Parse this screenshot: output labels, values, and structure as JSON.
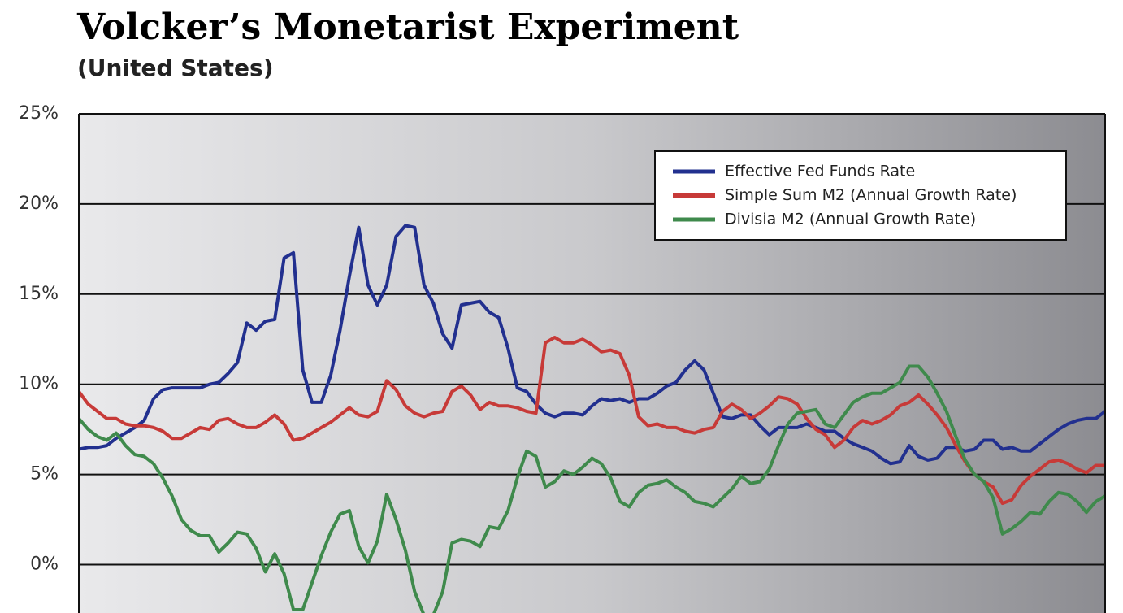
{
  "chart_data": {
    "type": "line",
    "title": "Volcker’s Monetarist Experiment",
    "subtitle": "(United States)",
    "ylim": [
      -1.6,
      25
    ],
    "yticks": [
      {
        "value": 0,
        "label": "0%"
      },
      {
        "value": 5,
        "label": "5%"
      },
      {
        "value": 10,
        "label": "10%"
      },
      {
        "value": 15,
        "label": "15%"
      },
      {
        "value": 20,
        "label": "20%"
      },
      {
        "value": 25,
        "label": "25%"
      }
    ],
    "grid": true,
    "legend": "upper right",
    "series": [
      {
        "name": "Effective Fed Funds Rate",
        "color": "#22308f",
        "values": [
          6.4,
          6.5,
          6.5,
          6.6,
          7.0,
          7.3,
          7.6,
          8.0,
          9.2,
          9.7,
          9.8,
          9.8,
          9.8,
          9.8,
          10.0,
          10.1,
          10.6,
          11.2,
          13.4,
          13.0,
          13.5,
          13.6,
          17.0,
          17.3,
          10.8,
          9.0,
          9.0,
          10.5,
          13.0,
          16.0,
          18.7,
          15.5,
          14.4,
          15.5,
          18.2,
          18.8,
          18.7,
          15.5,
          14.5,
          12.8,
          12.0,
          14.4,
          14.5,
          14.6,
          14.0,
          13.7,
          12.0,
          9.8,
          9.6,
          8.9,
          8.4,
          8.2,
          8.4,
          8.4,
          8.3,
          8.8,
          9.2,
          9.1,
          9.2,
          9.0,
          9.2,
          9.2,
          9.5,
          9.9,
          10.1,
          10.8,
          11.3,
          10.8,
          9.5,
          8.2,
          8.1,
          8.3,
          8.3,
          7.7,
          7.2,
          7.6,
          7.6,
          7.6,
          7.8,
          7.6,
          7.4,
          7.4,
          7.0,
          6.7,
          6.5,
          6.3,
          5.9,
          5.6,
          5.7,
          6.6,
          6.0,
          5.8,
          5.9,
          6.5,
          6.5,
          6.3,
          6.4,
          6.9,
          6.9,
          6.4,
          6.5,
          6.3,
          6.3,
          6.7,
          7.1,
          7.5,
          7.8,
          8.0,
          8.1,
          8.1,
          8.5
        ]
      },
      {
        "name": "Simple Sum M2 (Annual Growth Rate)",
        "color": "#c73a38",
        "values": [
          9.6,
          8.9,
          8.5,
          8.1,
          8.1,
          7.8,
          7.7,
          7.7,
          7.6,
          7.4,
          7.0,
          7.0,
          7.3,
          7.6,
          7.5,
          8.0,
          8.1,
          7.8,
          7.6,
          7.6,
          7.9,
          8.3,
          7.8,
          6.9,
          7.0,
          7.3,
          7.6,
          7.9,
          8.3,
          8.7,
          8.3,
          8.2,
          8.5,
          10.2,
          9.7,
          8.8,
          8.4,
          8.2,
          8.4,
          8.5,
          9.6,
          9.9,
          9.4,
          8.6,
          9.0,
          8.8,
          8.8,
          8.7,
          8.5,
          8.4,
          12.3,
          12.6,
          12.3,
          12.3,
          12.5,
          12.2,
          11.8,
          11.9,
          11.7,
          10.5,
          8.2,
          7.7,
          7.8,
          7.6,
          7.6,
          7.4,
          7.3,
          7.5,
          7.6,
          8.5,
          8.9,
          8.6,
          8.1,
          8.4,
          8.8,
          9.3,
          9.2,
          8.9,
          8.1,
          7.5,
          7.2,
          6.5,
          6.9,
          7.6,
          8.0,
          7.8,
          8.0,
          8.3,
          8.8,
          9.0,
          9.4,
          8.9,
          8.3,
          7.6,
          6.6,
          5.7,
          5.0,
          4.6,
          4.3,
          3.4,
          3.6,
          4.4,
          4.9,
          5.3,
          5.7,
          5.8,
          5.6,
          5.3,
          5.1,
          5.5,
          5.5
        ]
      },
      {
        "name": "Divisia M2 (Annual Growth Rate)",
        "color": "#3f8a4c",
        "values": [
          8.1,
          7.5,
          7.1,
          6.9,
          7.3,
          6.6,
          6.1,
          6.0,
          5.6,
          4.8,
          3.8,
          2.5,
          1.9,
          1.6,
          1.6,
          0.7,
          1.2,
          1.8,
          1.7,
          0.9,
          -0.4,
          0.6,
          -0.5,
          -2.5,
          -2.5,
          -1.0,
          0.5,
          1.8,
          2.8,
          3.0,
          1.0,
          0.1,
          1.3,
          3.9,
          2.5,
          0.8,
          -1.5,
          -2.8,
          -2.8,
          -1.5,
          1.2,
          1.4,
          1.3,
          1.0,
          2.1,
          2.0,
          3.0,
          4.8,
          6.3,
          6.0,
          4.3,
          4.6,
          5.2,
          5.0,
          5.4,
          5.9,
          5.6,
          4.8,
          3.5,
          3.2,
          4.0,
          4.4,
          4.5,
          4.7,
          4.3,
          4.0,
          3.5,
          3.4,
          3.2,
          3.7,
          4.2,
          4.9,
          4.5,
          4.6,
          5.3,
          6.6,
          7.8,
          8.4,
          8.5,
          8.6,
          7.8,
          7.6,
          8.3,
          9.0,
          9.3,
          9.5,
          9.5,
          9.8,
          10.1,
          11.0,
          11.0,
          10.4,
          9.5,
          8.5,
          7.1,
          5.8,
          5.0,
          4.6,
          3.7,
          1.7,
          2.0,
          2.4,
          2.9,
          2.8,
          3.5,
          4.0,
          3.9,
          3.5,
          2.9,
          3.5,
          3.8
        ]
      }
    ]
  }
}
